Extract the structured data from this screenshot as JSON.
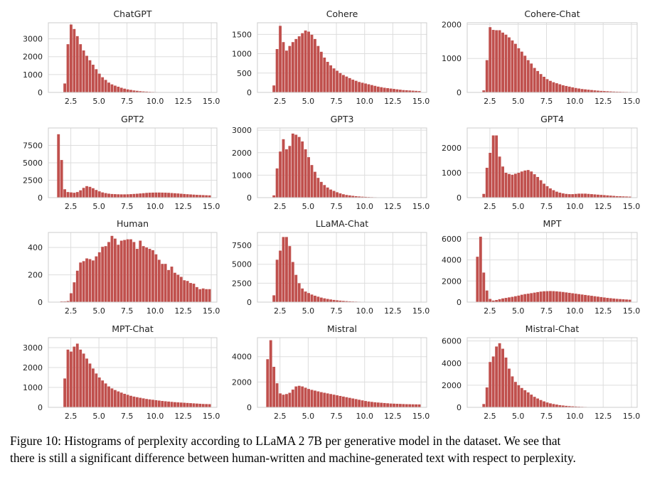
{
  "colors": {
    "bar": "#c0504d",
    "grid": "#dddddd",
    "axis": "#cccccc"
  },
  "caption": {
    "line1": "Figure 10: Histograms of perplexity according to LLaMA 2 7B per generative model in the dataset. We see that",
    "line2": "there is still a significant difference between human-written and machine-generated text with respect to perplexity."
  },
  "chart_data": [
    {
      "type": "bar",
      "title": "ChatGPT",
      "bin_range": [
        1,
        15
      ],
      "ylim": [
        0,
        3900
      ],
      "yticks": [
        "0",
        "1000",
        "2000",
        "3000"
      ],
      "ytick_values": [
        0,
        1000,
        2000,
        3000
      ],
      "xticks": [
        "2.5",
        "5.0",
        "7.5",
        "10.0",
        "12.5",
        "15.0"
      ],
      "xtick_values": [
        2.5,
        5,
        7.5,
        10,
        12.5,
        15
      ],
      "grid": true,
      "values": [
        0,
        0,
        0,
        500,
        2700,
        3800,
        3550,
        3150,
        2700,
        2350,
        2050,
        1800,
        1550,
        1300,
        1050,
        850,
        700,
        550,
        450,
        380,
        320,
        260,
        210,
        170,
        140,
        110,
        90,
        70,
        55,
        45,
        35,
        28,
        22,
        18,
        14,
        11,
        9,
        7,
        5,
        4,
        3,
        2,
        2,
        1,
        1,
        1,
        0,
        0,
        0,
        0
      ]
    },
    {
      "type": "bar",
      "title": "Cohere",
      "bin_range": [
        1,
        15
      ],
      "ylim": [
        0,
        1800
      ],
      "yticks": [
        "0",
        "500",
        "1000",
        "1500"
      ],
      "ytick_values": [
        0,
        500,
        1000,
        1500
      ],
      "xticks": [
        "2.5",
        "5.0",
        "7.5",
        "10.0",
        "12.5",
        "15.0"
      ],
      "xtick_values": [
        2.5,
        5,
        7.5,
        10,
        12.5,
        15
      ],
      "grid": true,
      "values": [
        0,
        0,
        0,
        180,
        1120,
        1720,
        1300,
        1080,
        1200,
        1300,
        1380,
        1450,
        1530,
        1600,
        1570,
        1490,
        1380,
        1200,
        1050,
        900,
        790,
        700,
        620,
        560,
        500,
        450,
        410,
        370,
        330,
        300,
        270,
        250,
        230,
        210,
        190,
        170,
        150,
        135,
        120,
        110,
        100,
        90,
        80,
        70,
        60,
        55,
        50,
        45,
        40,
        35
      ]
    },
    {
      "type": "bar",
      "title": "Cohere-Chat",
      "bin_range": [
        1,
        15
      ],
      "ylim": [
        0,
        2050
      ],
      "yticks": [
        "0",
        "1000",
        "2000"
      ],
      "ytick_values": [
        0,
        1000,
        2000
      ],
      "xticks": [
        "2.5",
        "5.0",
        "7.5",
        "10.0",
        "12.5",
        "15.0"
      ],
      "xtick_values": [
        2.5,
        5,
        7.5,
        10,
        12.5,
        15
      ],
      "grid": true,
      "values": [
        0,
        0,
        0,
        60,
        950,
        1920,
        1840,
        1830,
        1830,
        1760,
        1700,
        1620,
        1530,
        1430,
        1300,
        1200,
        1080,
        950,
        850,
        720,
        630,
        540,
        460,
        390,
        340,
        300,
        270,
        240,
        210,
        190,
        170,
        150,
        130,
        115,
        100,
        90,
        80,
        70,
        60,
        52,
        45,
        40,
        35,
        30,
        25,
        22,
        20,
        17,
        15,
        12
      ]
    },
    {
      "type": "bar",
      "title": "GPT2",
      "bin_range": [
        1,
        15
      ],
      "ylim": [
        0,
        10000
      ],
      "yticks": [
        "0",
        "2500",
        "5000",
        "7500"
      ],
      "ytick_values": [
        0,
        2500,
        5000,
        7500
      ],
      "xticks": [
        "2.5",
        "5.0",
        "7.5",
        "10.0",
        "12.5",
        "15.0"
      ],
      "xtick_values": [
        2.5,
        5,
        7.5,
        10,
        12.5,
        15
      ],
      "grid": true,
      "values": [
        0,
        9100,
        5400,
        1200,
        800,
        750,
        700,
        800,
        1050,
        1400,
        1650,
        1550,
        1350,
        1100,
        900,
        750,
        650,
        570,
        520,
        500,
        480,
        470,
        470,
        480,
        500,
        530,
        560,
        600,
        640,
        680,
        710,
        720,
        730,
        730,
        720,
        710,
        690,
        660,
        630,
        600,
        560,
        520,
        490,
        460,
        430,
        400,
        380,
        360,
        340,
        320
      ]
    },
    {
      "type": "bar",
      "title": "GPT3",
      "bin_range": [
        1,
        15
      ],
      "ylim": [
        0,
        3100
      ],
      "yticks": [
        "0",
        "1000",
        "2000",
        "3000"
      ],
      "ytick_values": [
        0,
        1000,
        2000,
        3000
      ],
      "xticks": [
        "2.5",
        "5.0",
        "7.5",
        "10.0",
        "12.5",
        "15.0"
      ],
      "xtick_values": [
        2.5,
        5,
        7.5,
        10,
        12.5,
        15
      ],
      "grid": true,
      "values": [
        0,
        0,
        0,
        100,
        1300,
        2050,
        2600,
        2150,
        2300,
        2850,
        2800,
        2700,
        2500,
        2150,
        1800,
        1450,
        1150,
        880,
        700,
        560,
        450,
        360,
        300,
        240,
        190,
        150,
        120,
        100,
        80,
        65,
        52,
        42,
        34,
        28,
        22,
        18,
        14,
        11,
        9,
        7,
        5,
        4,
        3,
        3,
        2,
        2,
        1,
        1,
        1,
        0
      ]
    },
    {
      "type": "bar",
      "title": "GPT4",
      "bin_range": [
        1,
        15
      ],
      "ylim": [
        0,
        2800
      ],
      "yticks": [
        "0",
        "1000",
        "2000"
      ],
      "ytick_values": [
        0,
        1000,
        2000
      ],
      "xticks": [
        "2.5",
        "5.0",
        "7.5",
        "10.0",
        "12.5",
        "15.0"
      ],
      "xtick_values": [
        2.5,
        5,
        7.5,
        10,
        12.5,
        15
      ],
      "grid": true,
      "values": [
        0,
        0,
        0,
        150,
        1200,
        1800,
        2500,
        2500,
        1650,
        1250,
        1000,
        950,
        920,
        960,
        1000,
        1050,
        1090,
        1110,
        1050,
        940,
        830,
        700,
        560,
        460,
        370,
        300,
        240,
        200,
        170,
        150,
        140,
        140,
        150,
        160,
        160,
        160,
        150,
        140,
        130,
        120,
        110,
        100,
        90,
        80,
        70,
        60,
        55,
        50,
        45,
        40
      ]
    },
    {
      "type": "bar",
      "title": "Human",
      "bin_range": [
        1,
        15
      ],
      "ylim": [
        0,
        510
      ],
      "yticks": [
        "0",
        "200",
        "400"
      ],
      "ytick_values": [
        0,
        200,
        400
      ],
      "xticks": [
        "2.5",
        "5.0",
        "7.5",
        "10.0",
        "12.5",
        "15.0"
      ],
      "xtick_values": [
        2.5,
        5,
        7.5,
        10,
        12.5,
        15
      ],
      "grid": true,
      "values": [
        0,
        0,
        5,
        5,
        8,
        65,
        145,
        230,
        290,
        300,
        320,
        315,
        305,
        335,
        365,
        405,
        410,
        440,
        485,
        465,
        420,
        450,
        455,
        460,
        460,
        440,
        390,
        450,
        410,
        400,
        390,
        380,
        350,
        310,
        280,
        280,
        235,
        260,
        215,
        200,
        185,
        160,
        155,
        140,
        135,
        110,
        95,
        100,
        95,
        95
      ]
    },
    {
      "type": "bar",
      "title": "LLaMA-Chat",
      "bin_range": [
        1,
        15
      ],
      "ylim": [
        0,
        9200
      ],
      "yticks": [
        "0",
        "2500",
        "5000",
        "7500"
      ],
      "ytick_values": [
        0,
        2500,
        5000,
        7500
      ],
      "xticks": [
        "2.5",
        "5.0",
        "7.5",
        "10.0",
        "12.5",
        "15.0"
      ],
      "xtick_values": [
        2.5,
        5,
        7.5,
        10,
        12.5,
        15
      ],
      "grid": true,
      "values": [
        0,
        0,
        0,
        900,
        5600,
        6800,
        8600,
        8600,
        7400,
        5300,
        3600,
        2500,
        1800,
        1400,
        1200,
        1000,
        850,
        720,
        600,
        500,
        420,
        350,
        290,
        240,
        200,
        160,
        130,
        105,
        85,
        70,
        55,
        45,
        36,
        28,
        22,
        18,
        14,
        11,
        9,
        7,
        5,
        4,
        3,
        2,
        2,
        1,
        1,
        1,
        0,
        0
      ]
    },
    {
      "type": "bar",
      "title": "MPT",
      "bin_range": [
        1,
        15
      ],
      "ylim": [
        0,
        6600
      ],
      "yticks": [
        "0",
        "2000",
        "4000",
        "6000"
      ],
      "ytick_values": [
        0,
        2000,
        4000,
        6000
      ],
      "xticks": [
        "2.5",
        "5.0",
        "7.5",
        "10.0",
        "12.5",
        "15.0"
      ],
      "xtick_values": [
        2.5,
        5,
        7.5,
        10,
        12.5,
        15
      ],
      "grid": true,
      "values": [
        0,
        4300,
        6200,
        2800,
        1100,
        300,
        150,
        200,
        280,
        350,
        400,
        450,
        500,
        560,
        620,
        700,
        760,
        800,
        850,
        900,
        950,
        1000,
        1030,
        1040,
        1050,
        1040,
        1020,
        990,
        960,
        920,
        880,
        840,
        800,
        760,
        720,
        680,
        640,
        600,
        560,
        520,
        480,
        440,
        400,
        370,
        340,
        310,
        290,
        270,
        250,
        230
      ]
    },
    {
      "type": "bar",
      "title": "MPT-Chat",
      "bin_range": [
        1,
        15
      ],
      "ylim": [
        0,
        3500
      ],
      "yticks": [
        "0",
        "1000",
        "2000",
        "3000"
      ],
      "ytick_values": [
        0,
        1000,
        2000,
        3000
      ],
      "xticks": [
        "2.5",
        "5.0",
        "7.5",
        "10.0",
        "12.5",
        "15.0"
      ],
      "xtick_values": [
        2.5,
        5,
        7.5,
        10,
        12.5,
        15
      ],
      "grid": true,
      "values": [
        0,
        0,
        0,
        1450,
        2900,
        2800,
        3050,
        3200,
        2900,
        2700,
        2450,
        2200,
        1950,
        1700,
        1500,
        1350,
        1200,
        1050,
        950,
        870,
        800,
        740,
        680,
        630,
        580,
        540,
        510,
        480,
        450,
        420,
        400,
        380,
        360,
        340,
        320,
        305,
        290,
        275,
        260,
        250,
        240,
        230,
        220,
        210,
        200,
        190,
        180,
        170,
        165,
        160
      ]
    },
    {
      "type": "bar",
      "title": "Mistral",
      "bin_range": [
        1,
        15
      ],
      "ylim": [
        0,
        5500
      ],
      "yticks": [
        "0",
        "2000",
        "4000"
      ],
      "ytick_values": [
        0,
        2000,
        4000
      ],
      "xticks": [
        "2.5",
        "5.0",
        "7.5",
        "10.0",
        "12.5",
        "15.0"
      ],
      "xtick_values": [
        2.5,
        5,
        7.5,
        10,
        12.5,
        15
      ],
      "grid": true,
      "values": [
        0,
        3800,
        5300,
        3200,
        1900,
        1100,
        1000,
        1050,
        1150,
        1400,
        1650,
        1700,
        1650,
        1550,
        1450,
        1380,
        1320,
        1260,
        1200,
        1150,
        1100,
        1050,
        1000,
        950,
        900,
        850,
        800,
        750,
        700,
        650,
        600,
        550,
        500,
        460,
        430,
        400,
        380,
        360,
        340,
        320,
        300,
        290,
        280,
        270,
        260,
        250,
        245,
        240,
        235,
        230
      ]
    },
    {
      "type": "bar",
      "title": "Mistral-Chat",
      "bin_range": [
        1,
        15
      ],
      "ylim": [
        0,
        6300
      ],
      "yticks": [
        "0",
        "2000",
        "4000",
        "6000"
      ],
      "ytick_values": [
        0,
        2000,
        4000,
        6000
      ],
      "xticks": [
        "2.5",
        "5.0",
        "7.5",
        "10.0",
        "12.5",
        "15.0"
      ],
      "xtick_values": [
        2.5,
        5,
        7.5,
        10,
        12.5,
        15
      ],
      "grid": true,
      "values": [
        0,
        0,
        0,
        300,
        1800,
        4100,
        4600,
        5500,
        5800,
        5300,
        4500,
        3500,
        2800,
        2300,
        2000,
        1750,
        1550,
        1350,
        1150,
        950,
        800,
        660,
        540,
        440,
        360,
        300,
        250,
        200,
        165,
        135,
        110,
        90,
        73,
        60,
        48,
        38,
        30,
        24,
        19,
        15,
        12,
        9,
        7,
        5,
        4,
        3,
        2,
        2,
        1,
        1
      ]
    }
  ]
}
